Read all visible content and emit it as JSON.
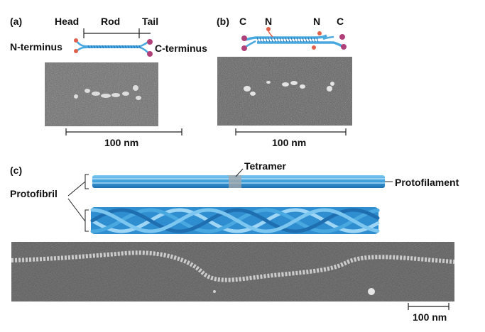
{
  "panels": {
    "a": "(a)",
    "b": "(b)",
    "c": "(c)"
  },
  "panel_a": {
    "head": "Head",
    "rod": "Rod",
    "tail": "Tail",
    "n_terminus": "N-terminus",
    "c_terminus": "C-terminus",
    "scale": "100 nm"
  },
  "panel_b": {
    "c_left": "C",
    "n_left": "N",
    "n_right": "N",
    "c_right": "C",
    "scale": "100 nm"
  },
  "panel_c": {
    "tetramer": "Tetramer",
    "protofilament": "Protofilament",
    "protofibril": "Protofibril",
    "scale": "100 nm"
  },
  "colors": {
    "coil": "#4aa8e0",
    "coil_dark": "#1f6fb0",
    "head_ball": "#e0604a",
    "tail_ball": "#b0407a",
    "micrograph": "#5a5a5a"
  }
}
